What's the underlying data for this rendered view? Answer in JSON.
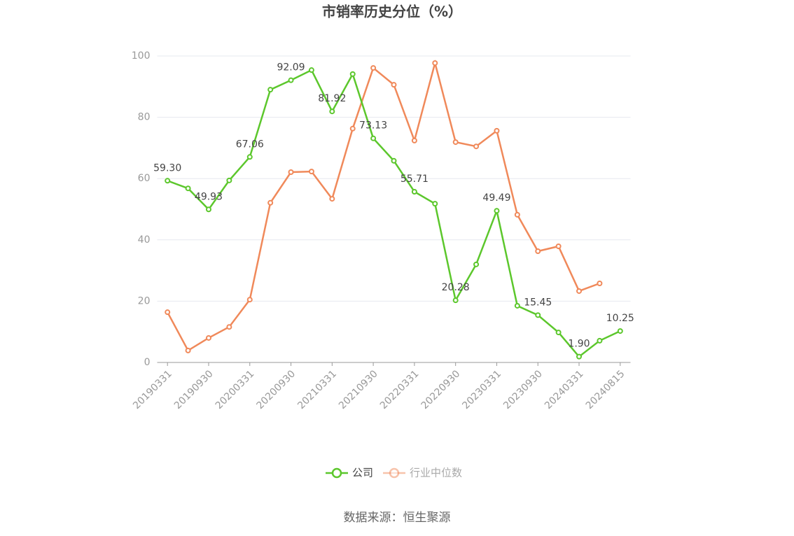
{
  "chart_data": {
    "type": "line",
    "title": "市销率历史分位（%）",
    "categories": [
      "20190331",
      null,
      "20190930",
      null,
      "20200331",
      null,
      "20200930",
      null,
      "20210331",
      null,
      "20210930",
      null,
      "20220331",
      null,
      "20220930",
      null,
      "20230331",
      null,
      "20230930",
      null,
      "20240331",
      null,
      "20240815"
    ],
    "series": [
      {
        "name": "公司",
        "color": "#5cc72c",
        "values": [
          59.3,
          56.8,
          49.93,
          59.4,
          67.06,
          89.0,
          92.09,
          95.4,
          81.92,
          94.1,
          73.13,
          65.8,
          55.71,
          51.8,
          20.28,
          32.0,
          49.49,
          18.5,
          15.45,
          9.8,
          1.9,
          7.1,
          10.25
        ],
        "value_labels": [
          "59.30",
          null,
          "49.93",
          null,
          "67.06",
          null,
          "92.09",
          null,
          "81.92",
          null,
          "73.13",
          null,
          "55.71",
          null,
          "20.28",
          null,
          "49.49",
          null,
          "15.45",
          null,
          "1.90",
          null,
          "10.25"
        ]
      },
      {
        "name": "行业中位数",
        "color": "#f0895a",
        "values": [
          16.4,
          3.9,
          8.0,
          11.6,
          20.5,
          52.1,
          62.1,
          62.3,
          53.4,
          76.3,
          96.1,
          90.6,
          72.4,
          97.7,
          71.9,
          70.5,
          75.6,
          48.2,
          36.3,
          37.9,
          23.3,
          25.8,
          null
        ]
      }
    ],
    "ylim": [
      0,
      100
    ],
    "yticks": [
      0,
      20,
      40,
      60,
      80,
      100
    ],
    "grid": true,
    "legend": "bottom",
    "source": "数据来源：恒生聚源"
  }
}
